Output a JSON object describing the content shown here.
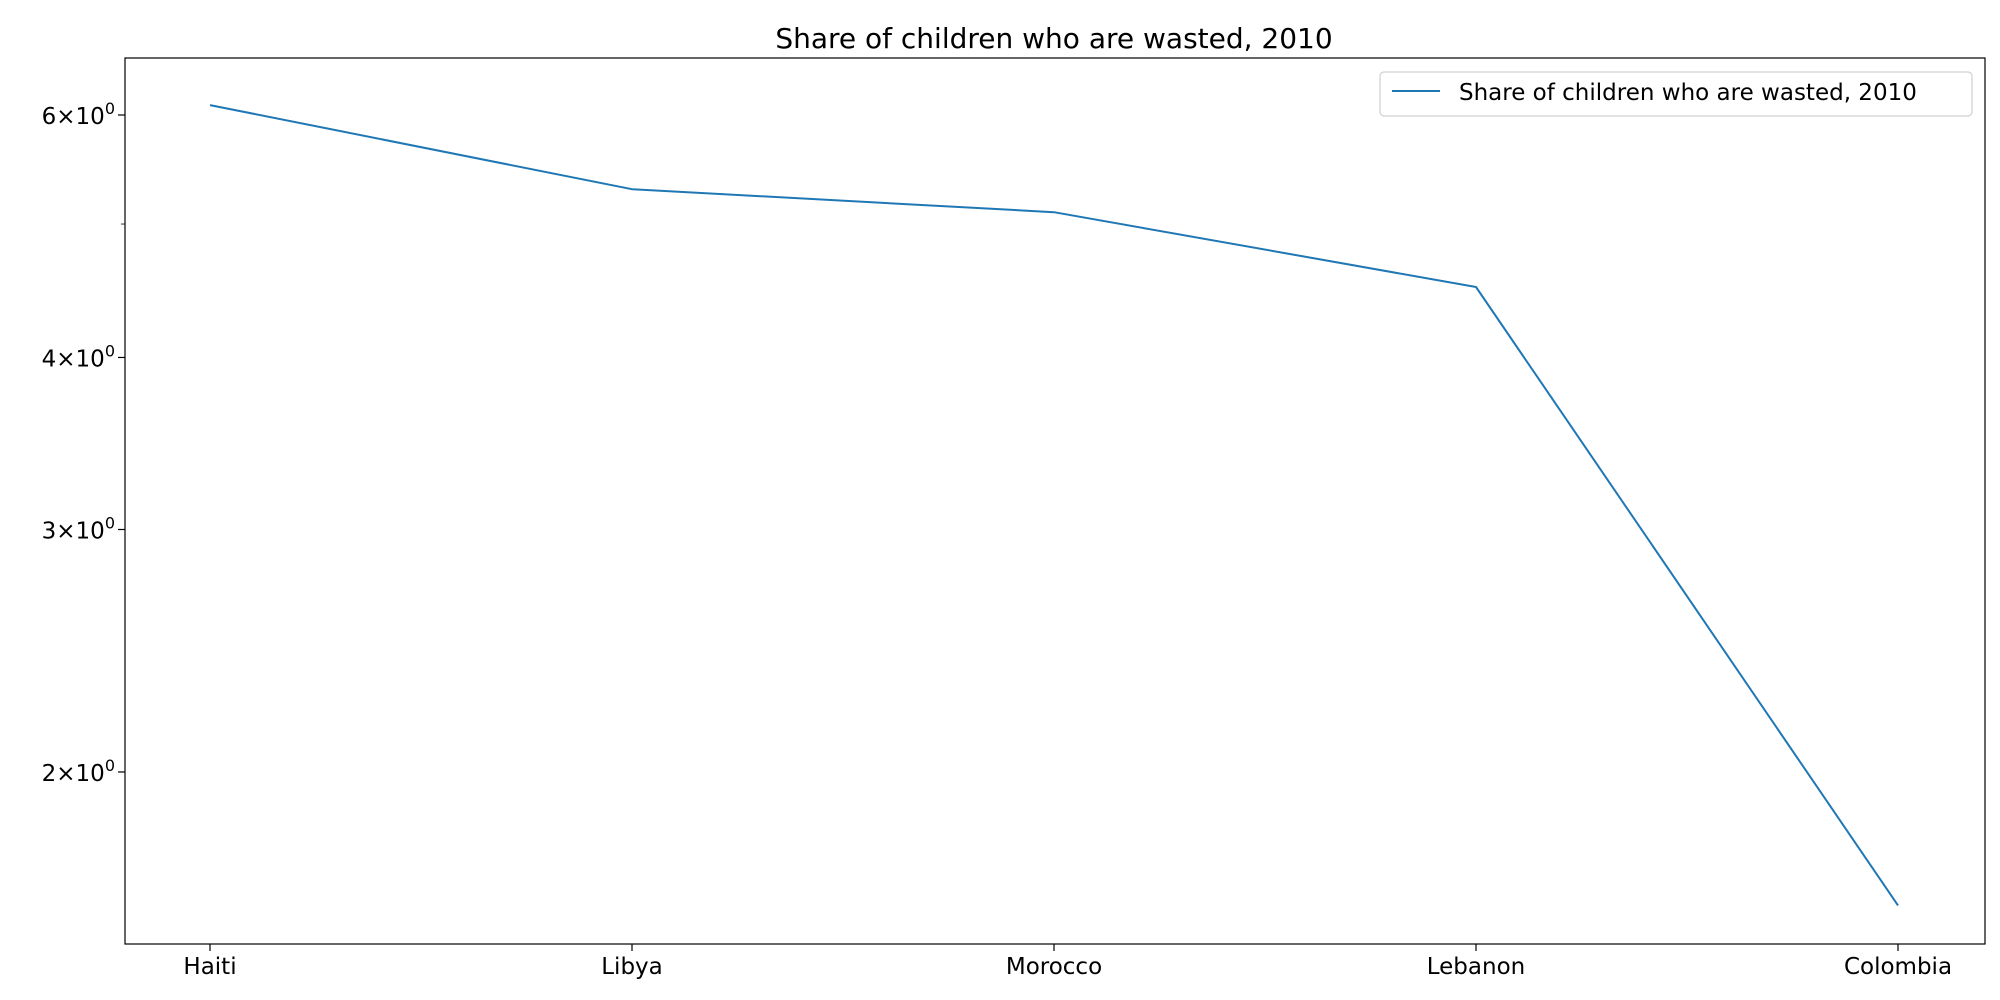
{
  "chart_data": {
    "type": "line",
    "title": "Share of children who are wasted, 2010",
    "xlabel": "",
    "ylabel": "",
    "categories": [
      "Haiti",
      "Libya",
      "Morocco",
      "Lebanon",
      "Colombia"
    ],
    "series": [
      {
        "name": "Share of children who are wasted, 2010",
        "values": [
          6.1,
          5.3,
          5.1,
          4.5,
          1.6
        ],
        "color": "#1f77b4"
      }
    ],
    "yscale": "log",
    "ylim": [
      1.5,
      6.6
    ],
    "yticks": [
      {
        "value": 2,
        "label_base": "2",
        "label_exp": "0"
      },
      {
        "value": 3,
        "label_base": "3",
        "label_exp": "0"
      },
      {
        "value": 4,
        "label_base": "4",
        "label_exp": "0"
      },
      {
        "value": 6,
        "label_base": "6",
        "label_exp": "0"
      }
    ],
    "minor_yticks": [
      5
    ],
    "grid": false,
    "legend": {
      "placement": "top-right",
      "entries": [
        "Share of children who are wasted, 2010"
      ]
    }
  }
}
